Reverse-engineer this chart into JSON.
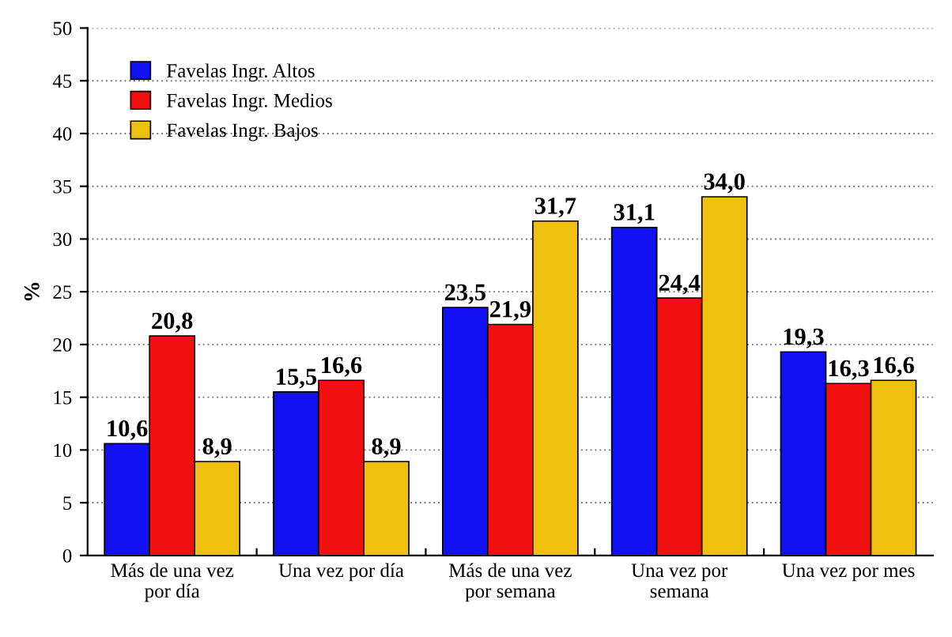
{
  "chart_data": {
    "type": "bar",
    "ylabel": "%",
    "categories": [
      "Más de una vez\npor día",
      "Una vez por día",
      "Más de una vez\npor semana",
      "Una vez por\nsemana",
      "Una vez por mes"
    ],
    "series": [
      {
        "name": "Favelas Ingr. Altos",
        "color": "#1010f0",
        "values": [
          10.6,
          15.5,
          23.5,
          31.1,
          19.3
        ],
        "value_labels": [
          "10,6",
          "15,5",
          "23,5",
          "31,1",
          "19,3"
        ]
      },
      {
        "name": "Favelas Ingr. Medios",
        "color": "#f01010",
        "values": [
          20.8,
          16.6,
          21.9,
          24.4,
          16.3
        ],
        "value_labels": [
          "20,8",
          "16,6",
          "21,9",
          "24,4",
          "16,3"
        ]
      },
      {
        "name": "Favelas Ingr. Bajos",
        "color": "#f0c010",
        "values": [
          8.9,
          8.9,
          31.7,
          34.0,
          16.6
        ],
        "value_labels": [
          "8,9",
          "8,9",
          "31,7",
          "34,0",
          "16,6"
        ]
      }
    ],
    "ylim": [
      0,
      50
    ],
    "yticks": [
      0,
      5,
      10,
      15,
      20,
      25,
      30,
      35,
      40,
      45,
      50
    ],
    "grid": "y",
    "legend": "top left"
  }
}
